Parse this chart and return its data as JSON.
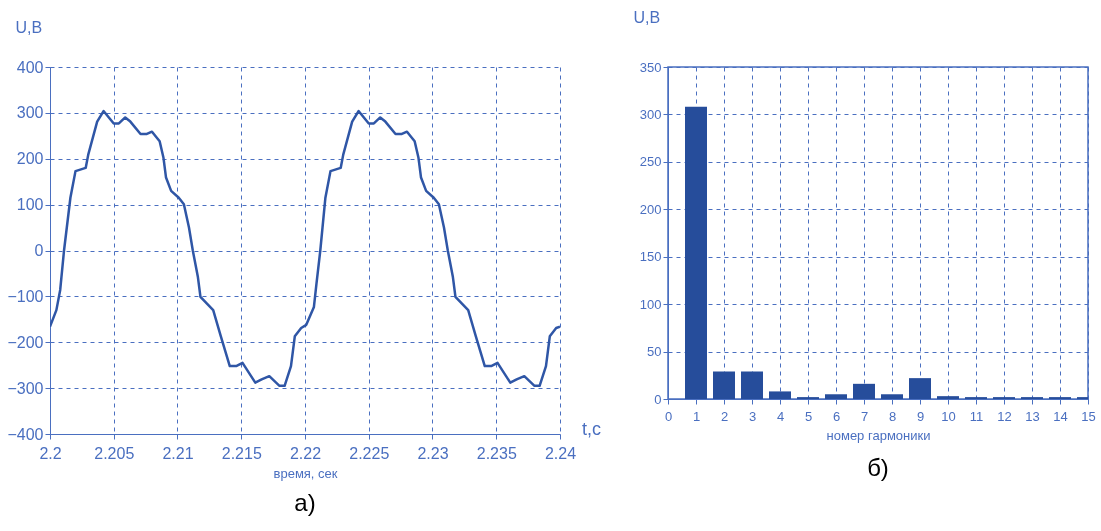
{
  "chart_data": [
    {
      "type": "line",
      "xlabel": "время, сек",
      "ylabel": "U,B",
      "color": "#2f56a6",
      "xlim": [
        2.2,
        2.24
      ],
      "ylim": [
        -400,
        400
      ],
      "xticks": [
        {
          "value": 2.2,
          "label": "2.2"
        },
        2.205,
        {
          "value": 2.21,
          "label": "2.21"
        },
        2.215,
        {
          "value": 2.22,
          "label": "2.22"
        },
        2.225,
        {
          "value": 2.23,
          "label": "2.23"
        },
        2.235,
        {
          "value": 2.24,
          "label": "2.24"
        }
      ],
      "yticks": [
        -400,
        -300,
        -200,
        -100,
        0,
        100,
        200,
        300,
        400
      ],
      "grid": true,
      "annotations": [
        "t,c",
        "а)"
      ],
      "x": [
        2.2,
        2.2005,
        2.2008,
        2.2011,
        2.2016,
        2.202,
        2.2028,
        2.203,
        2.2037,
        2.2042,
        2.205,
        2.2054,
        2.2059,
        2.2063,
        2.2071,
        2.2076,
        2.208,
        2.2086,
        2.2089,
        2.2091,
        2.2095,
        2.2101,
        2.2105,
        2.2109,
        2.2112,
        2.2116,
        2.2118,
        2.2128,
        2.2134,
        2.2141,
        2.2146,
        2.2151,
        2.2161,
        2.2166,
        2.2172,
        2.218,
        2.2184,
        2.2189,
        2.2192,
        2.2197,
        2.2201,
        2.2207,
        2.2209,
        2.2212,
        2.2216,
        2.222,
        2.2228,
        2.223,
        2.2237,
        2.2242,
        2.225,
        2.2254,
        2.2259,
        2.2263,
        2.2271,
        2.2276,
        2.228,
        2.2286,
        2.2289,
        2.2291,
        2.2295,
        2.2301,
        2.2305,
        2.2309,
        2.2312,
        2.2316,
        2.2318,
        2.2328,
        2.2334,
        2.2341,
        2.2346,
        2.2351,
        2.2361,
        2.2366,
        2.2372,
        2.238,
        2.2384,
        2.2389,
        2.2392,
        2.2397,
        2.24
      ],
      "values": [
        -166,
        -130,
        -86,
        0,
        115,
        173,
        180,
        209,
        281,
        304,
        277,
        277,
        290,
        281,
        254,
        254,
        259,
        238,
        202,
        159,
        130,
        115,
        101,
        50,
        0,
        -58,
        -101,
        -130,
        -187,
        -252,
        -252,
        -245,
        -288,
        -281,
        -274,
        -295,
        -295,
        -252,
        -187,
        -169,
        -162,
        -123,
        -72,
        0,
        115,
        173,
        180,
        209,
        281,
        304,
        277,
        277,
        290,
        281,
        254,
        254,
        259,
        238,
        202,
        159,
        130,
        115,
        101,
        50,
        0,
        -58,
        -101,
        -130,
        -187,
        -252,
        -252,
        -245,
        -288,
        -281,
        -274,
        -295,
        -295,
        -252,
        -187,
        -169,
        -166
      ]
    },
    {
      "type": "bar",
      "xlabel": "номер гармоники",
      "ylabel": "U,B",
      "color": "#264d9b",
      "xlim": [
        0,
        15
      ],
      "ylim": [
        0,
        350
      ],
      "xticks": [
        0,
        1,
        2,
        3,
        4,
        5,
        6,
        7,
        8,
        9,
        10,
        11,
        12,
        13,
        14,
        15
      ],
      "yticks": [
        0,
        50,
        100,
        150,
        200,
        250,
        300,
        350
      ],
      "grid": true,
      "annotations": [
        "б)"
      ],
      "x": [
        1,
        2,
        3,
        4,
        5,
        6,
        7,
        8,
        9,
        10,
        11,
        12,
        13,
        14,
        15
      ],
      "values": [
        308,
        29,
        29,
        8,
        2,
        5,
        16,
        5,
        22,
        3,
        2,
        2,
        2,
        2,
        2
      ]
    }
  ]
}
